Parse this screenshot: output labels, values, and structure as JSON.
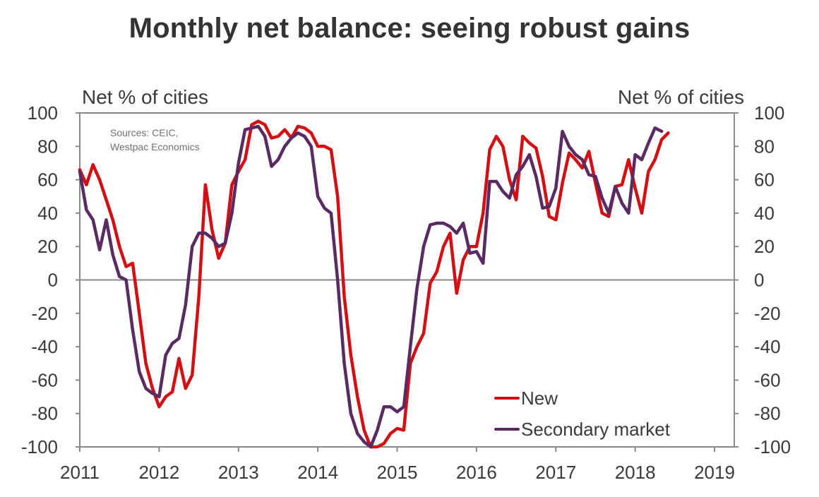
{
  "title": "Monthly net balance: seeing robust gains",
  "axes": {
    "left_label": "Net % of cities",
    "right_label": "Net % of cities"
  },
  "source": {
    "line1": "Sources: CEIC,",
    "line2": "Westpac Economics"
  },
  "legend": {
    "new": "New",
    "secondary": "Secondary market"
  },
  "colors": {
    "new": "#d40f14",
    "secondary": "#5a2a62",
    "axis": "#8a8a8a",
    "zero_line": "#8a8a8a"
  },
  "chart_data": {
    "type": "line",
    "title": "Monthly net balance: seeing robust gains",
    "xlabel": "",
    "ylabel": "Net % of cities",
    "ylabel_right": "Net % of cities",
    "ylim": [
      -100,
      100
    ],
    "yticks": [
      -100,
      -80,
      -60,
      -40,
      -20,
      0,
      20,
      40,
      60,
      80,
      100
    ],
    "xlim": [
      2011,
      2019
    ],
    "xticks": [
      "2011",
      "2012",
      "2013",
      "2014",
      "2015",
      "2016",
      "2017",
      "2018",
      "2019"
    ],
    "grid": false,
    "zero_line": true,
    "legend_position": "lower right",
    "x_start": "2011-01",
    "frequency": "monthly",
    "annotations": [
      "Sources: CEIC, Westpac Economics"
    ],
    "series": [
      {
        "name": "New",
        "color": "#d40f14",
        "values": [
          66,
          57,
          69,
          60,
          48,
          36,
          20,
          8,
          10,
          -20,
          -50,
          -65,
          -76,
          -70,
          -67,
          -47,
          -65,
          -57,
          -10,
          57,
          30,
          13,
          22,
          57,
          65,
          72,
          93,
          95,
          93,
          85,
          86,
          90,
          85,
          92,
          91,
          88,
          80,
          80,
          78,
          50,
          -10,
          -45,
          -70,
          -90,
          -100,
          -100,
          -98,
          -92,
          -89,
          -90,
          -50,
          -40,
          -32,
          -2,
          5,
          20,
          28,
          -8,
          12,
          20,
          20,
          40,
          78,
          86,
          80,
          60,
          48,
          86,
          82,
          79,
          62,
          38,
          36,
          58,
          76,
          72,
          67,
          77,
          58,
          40,
          38,
          56,
          57,
          72,
          55,
          40,
          65,
          72,
          84,
          88
        ]
      },
      {
        "name": "Secondary market",
        "color": "#5a2a62",
        "values": [
          65,
          42,
          36,
          18,
          36,
          15,
          2,
          0,
          -30,
          -55,
          -65,
          -68,
          -70,
          -45,
          -38,
          -35,
          -15,
          20,
          28,
          28,
          25,
          20,
          22,
          40,
          70,
          90,
          91,
          92,
          86,
          68,
          72,
          80,
          85,
          88,
          86,
          80,
          50,
          43,
          40,
          0,
          -50,
          -80,
          -92,
          -97,
          -100,
          -90,
          -76,
          -76,
          -79,
          -76,
          -40,
          -5,
          20,
          33,
          34,
          34,
          32,
          28,
          34,
          16,
          17,
          10,
          59,
          59,
          53,
          49,
          63,
          68,
          75,
          62,
          43,
          44,
          55,
          89,
          80,
          75,
          72,
          63,
          62,
          49,
          40,
          56,
          46,
          40,
          75,
          72,
          82,
          91,
          89
        ]
      }
    ]
  }
}
